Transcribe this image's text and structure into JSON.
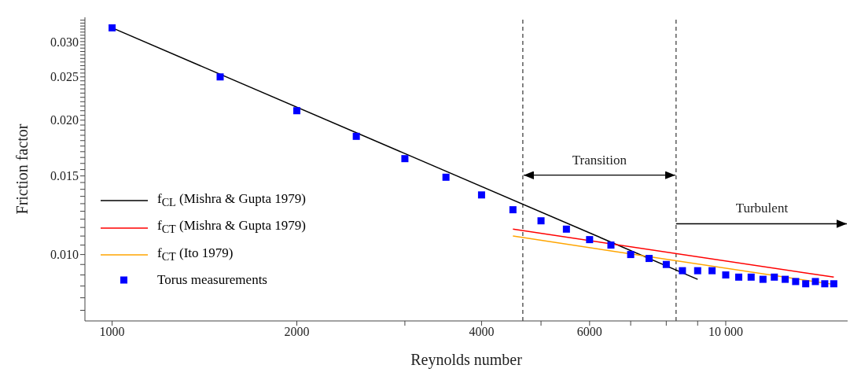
{
  "chart_data": {
    "type": "line",
    "xlabel": "Reynolds number",
    "ylabel": "Friction factor",
    "log": "xy",
    "grid": false,
    "legend": "bottom left",
    "xlim": [
      903,
      15800
    ],
    "ylim": [
      0.0071,
      0.034
    ],
    "xticks": [
      1000,
      2000,
      {
        "value": 3000,
        "label": null
      },
      4000,
      {
        "value": 5000,
        "label": null
      },
      6000,
      {
        "value": 7000,
        "label": null
      },
      {
        "value": 8000,
        "label": null
      },
      {
        "value": 9000,
        "label": null
      },
      {
        "value": 10000,
        "label": "10 000"
      }
    ],
    "yticks": [
      {
        "value": 0.0075,
        "label": null
      },
      {
        "value": 0.008,
        "label": null
      },
      {
        "value": 0.0085,
        "label": null
      },
      {
        "value": 0.009,
        "label": null
      },
      {
        "value": 0.0095,
        "label": null
      },
      {
        "value": 0.01,
        "label": "0.010"
      },
      {
        "value": 0.0105,
        "label": null
      },
      {
        "value": 0.011,
        "label": null
      },
      {
        "value": 0.0115,
        "label": null
      },
      {
        "value": 0.012,
        "label": null
      },
      {
        "value": 0.0125,
        "label": null
      },
      {
        "value": 0.013,
        "label": null
      },
      {
        "value": 0.0135,
        "label": null
      },
      {
        "value": 0.014,
        "label": null
      },
      {
        "value": 0.0145,
        "label": null
      },
      {
        "value": 0.015,
        "label": "0.015"
      },
      {
        "value": 0.0155,
        "label": null
      },
      {
        "value": 0.016,
        "label": null
      },
      {
        "value": 0.0165,
        "label": null
      },
      {
        "value": 0.017,
        "label": null
      },
      {
        "value": 0.0175,
        "label": null
      },
      {
        "value": 0.018,
        "label": null
      },
      {
        "value": 0.0185,
        "label": null
      },
      {
        "value": 0.019,
        "label": null
      },
      {
        "value": 0.0195,
        "label": null
      },
      {
        "value": 0.02,
        "label": "0.020"
      },
      {
        "value": 0.0205,
        "label": null
      },
      {
        "value": 0.021,
        "label": null
      },
      {
        "value": 0.0215,
        "label": null
      },
      {
        "value": 0.022,
        "label": null
      },
      {
        "value": 0.0225,
        "label": null
      },
      {
        "value": 0.023,
        "label": null
      },
      {
        "value": 0.0235,
        "label": null
      },
      {
        "value": 0.024,
        "label": null
      },
      {
        "value": 0.0245,
        "label": null
      },
      {
        "value": 0.025,
        "label": "0.025"
      },
      {
        "value": 0.0255,
        "label": null
      },
      {
        "value": 0.026,
        "label": null
      },
      {
        "value": 0.0265,
        "label": null
      },
      {
        "value": 0.027,
        "label": null
      },
      {
        "value": 0.0275,
        "label": null
      },
      {
        "value": 0.028,
        "label": null
      },
      {
        "value": 0.0285,
        "label": null
      },
      {
        "value": 0.029,
        "label": null
      },
      {
        "value": 0.0295,
        "label": null
      },
      {
        "value": 0.03,
        "label": "0.030"
      },
      {
        "value": 0.0305,
        "label": null
      },
      {
        "value": 0.031,
        "label": null
      },
      {
        "value": 0.0315,
        "label": null
      },
      {
        "value": 0.032,
        "label": null
      },
      {
        "value": 0.0325,
        "label": null
      },
      {
        "value": 0.033,
        "label": null
      },
      {
        "value": 0.0335,
        "label": null
      }
    ],
    "series": [
      {
        "name": "f$_{CL}$ (Mishra & Gupta 1979)",
        "color": "#000000",
        "marker": "none",
        "line_style": "solid",
        "x": [
          1000,
          9000
        ],
        "values": [
          0.0322,
          0.0088
        ]
      },
      {
        "name": "f$_{CT}$ (Mishra & Gupta 1979)",
        "color": "#ff0000",
        "marker": "none",
        "line_style": "solid",
        "x": [
          4500,
          15000
        ],
        "values": [
          0.0114,
          0.0089
        ]
      },
      {
        "name": "f$_{CT}$ (Ito 1979)",
        "color": "#ffa500",
        "marker": "none",
        "line_style": "solid",
        "x": [
          4500,
          15000
        ],
        "values": [
          0.011,
          0.00857
        ]
      },
      {
        "name": "Torus measurements",
        "type": "scatter",
        "color": "#0000ff",
        "marker": "square",
        "x": [
          1000,
          1500,
          2000,
          2500,
          3000,
          3500,
          4000,
          4500,
          5000,
          5500,
          6000,
          6500,
          7000,
          7500,
          8000,
          8500,
          9000,
          9500,
          10000,
          10500,
          11000,
          11500,
          12000,
          12500,
          13000,
          13500,
          14000,
          14500,
          15000
        ],
        "values": [
          0.0322,
          0.025,
          0.021,
          0.0184,
          0.0164,
          0.0149,
          0.0136,
          0.0126,
          0.0119,
          0.0114,
          0.0108,
          0.0105,
          0.01,
          0.0098,
          0.0095,
          0.0092,
          0.0092,
          0.0092,
          0.009,
          0.0089,
          0.0089,
          0.0088,
          0.0089,
          0.0088,
          0.0087,
          0.0086,
          0.0087,
          0.0086,
          0.0086
        ]
      }
    ],
    "ref_lines": [
      {
        "axis": "x",
        "value": 4670,
        "color": "#333333",
        "line_style": "dashed"
      },
      {
        "axis": "x",
        "value": 8300,
        "color": "#333333",
        "line_style": "dashed"
      }
    ],
    "annotations": [
      "Transition",
      "Turbulent"
    ]
  }
}
